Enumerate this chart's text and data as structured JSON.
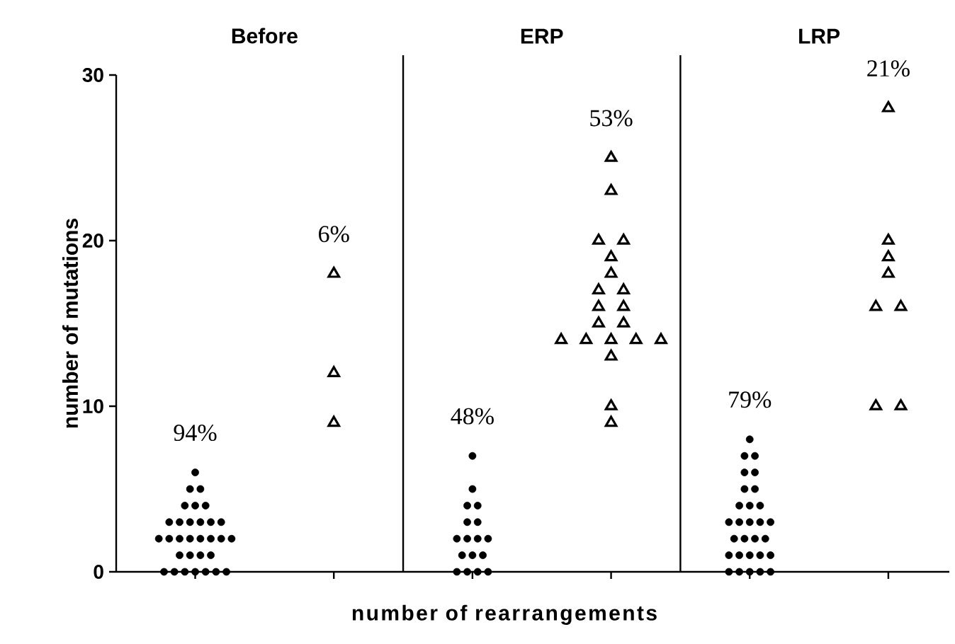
{
  "chart_data": {
    "type": "scatter",
    "ylabel": "number of mutations",
    "xlabel": "number of rearrangements",
    "categories": [
      null,
      null,
      null,
      null,
      null,
      null
    ],
    "ylim": [
      0,
      30
    ],
    "yticks": [
      0,
      10,
      20,
      30
    ],
    "tick_labels": "y",
    "annotations": [
      "Before",
      "ERP",
      "LRP",
      "94%",
      "6%",
      "48%",
      "53%",
      "79%",
      "21%"
    ],
    "series": [
      {
        "color": "#000000",
        "marker": "circle",
        "values": [
          6,
          null,
          7,
          null,
          8,
          null
        ]
      },
      {
        "color": "#000000",
        "marker": "circle",
        "values": [
          5,
          null,
          5,
          null,
          7,
          null
        ]
      },
      {
        "color": "#000000",
        "marker": "circle",
        "values": [
          5,
          null,
          4,
          null,
          7,
          null
        ]
      },
      {
        "color": "#000000",
        "marker": "circle",
        "values": [
          4,
          null,
          4,
          null,
          6,
          null
        ]
      },
      {
        "color": "#000000",
        "marker": "circle",
        "values": [
          4,
          null,
          3,
          null,
          6,
          null
        ]
      },
      {
        "color": "#000000",
        "marker": "circle",
        "values": [
          4,
          null,
          3,
          null,
          5,
          null
        ]
      },
      {
        "color": "#000000",
        "marker": "circle",
        "values": [
          3,
          null,
          2,
          null,
          5,
          null
        ]
      },
      {
        "color": "#000000",
        "marker": "circle",
        "values": [
          3,
          null,
          2,
          null,
          4,
          null
        ]
      },
      {
        "color": "#000000",
        "marker": "circle",
        "values": [
          3,
          null,
          2,
          null,
          4,
          null
        ]
      },
      {
        "color": "#000000",
        "marker": "circle",
        "values": [
          3,
          null,
          2,
          null,
          4,
          null
        ]
      },
      {
        "color": "#000000",
        "marker": "circle",
        "values": [
          3,
          null,
          1,
          null,
          3,
          null
        ]
      },
      {
        "color": "#000000",
        "marker": "circle",
        "values": [
          3,
          null,
          1,
          null,
          3,
          null
        ]
      },
      {
        "color": "#000000",
        "marker": "circle",
        "values": [
          2,
          null,
          1,
          null,
          3,
          null
        ]
      },
      {
        "color": "#000000",
        "marker": "circle",
        "values": [
          2,
          null,
          0,
          null,
          3,
          null
        ]
      },
      {
        "color": "#000000",
        "marker": "circle",
        "values": [
          2,
          null,
          0,
          null,
          3,
          null
        ]
      },
      {
        "color": "#000000",
        "marker": "circle",
        "values": [
          2,
          null,
          0,
          null,
          2,
          null
        ]
      },
      {
        "color": "#000000",
        "marker": "circle",
        "values": [
          2,
          null,
          0,
          null,
          2,
          null
        ]
      },
      {
        "color": "#000000",
        "marker": "circle",
        "values": [
          2,
          null,
          null,
          null,
          2,
          null
        ]
      },
      {
        "color": "#000000",
        "marker": "circle",
        "values": [
          2,
          null,
          null,
          null,
          2,
          null
        ]
      },
      {
        "color": "#000000",
        "marker": "circle",
        "values": [
          2,
          null,
          null,
          null,
          1,
          null
        ]
      },
      {
        "color": "#000000",
        "marker": "circle",
        "values": [
          1,
          null,
          null,
          null,
          1,
          null
        ]
      },
      {
        "color": "#000000",
        "marker": "circle",
        "values": [
          1,
          null,
          null,
          null,
          1,
          null
        ]
      },
      {
        "color": "#000000",
        "marker": "circle",
        "values": [
          1,
          null,
          null,
          null,
          1,
          null
        ]
      },
      {
        "color": "#000000",
        "marker": "circle",
        "values": [
          1,
          null,
          null,
          null,
          1,
          null
        ]
      },
      {
        "color": "#000000",
        "marker": "circle",
        "values": [
          0,
          null,
          null,
          null,
          0,
          null
        ]
      },
      {
        "color": "#000000",
        "marker": "circle",
        "values": [
          0,
          null,
          null,
          null,
          0,
          null
        ]
      },
      {
        "color": "#000000",
        "marker": "circle",
        "values": [
          0,
          null,
          null,
          null,
          0,
          null
        ]
      },
      {
        "color": "#000000",
        "marker": "circle",
        "values": [
          0,
          null,
          null,
          null,
          0,
          null
        ]
      },
      {
        "color": "#000000",
        "marker": "circle",
        "values": [
          0,
          null,
          null,
          null,
          0,
          null
        ]
      },
      {
        "color": "#000000",
        "marker": "circle",
        "values": [
          0,
          null,
          null,
          null,
          null,
          null
        ]
      },
      {
        "color": "#000000",
        "marker": "circle",
        "values": [
          0,
          null,
          null,
          null,
          null,
          null
        ]
      },
      {
        "color": "#000000",
        "marker": "triangle",
        "values": [
          null,
          18,
          null,
          25,
          null,
          28
        ]
      },
      {
        "color": "#000000",
        "marker": "triangle",
        "values": [
          null,
          12,
          null,
          23,
          null,
          20
        ]
      },
      {
        "color": "#000000",
        "marker": "triangle",
        "values": [
          null,
          9,
          null,
          20,
          null,
          19
        ]
      },
      {
        "color": "#000000",
        "marker": "triangle",
        "values": [
          null,
          null,
          null,
          20,
          null,
          18
        ]
      },
      {
        "color": "#000000",
        "marker": "triangle",
        "values": [
          null,
          null,
          null,
          19,
          null,
          16
        ]
      },
      {
        "color": "#000000",
        "marker": "triangle",
        "values": [
          null,
          null,
          null,
          18,
          null,
          16
        ]
      },
      {
        "color": "#000000",
        "marker": "triangle",
        "values": [
          null,
          null,
          null,
          17,
          null,
          10
        ]
      },
      {
        "color": "#000000",
        "marker": "triangle",
        "values": [
          null,
          null,
          null,
          17,
          null,
          10
        ]
      },
      {
        "color": "#000000",
        "marker": "triangle",
        "values": [
          null,
          null,
          null,
          16,
          null,
          null
        ]
      },
      {
        "color": "#000000",
        "marker": "triangle",
        "values": [
          null,
          null,
          null,
          16,
          null,
          null
        ]
      },
      {
        "color": "#000000",
        "marker": "triangle",
        "values": [
          null,
          null,
          null,
          15,
          null,
          null
        ]
      },
      {
        "color": "#000000",
        "marker": "triangle",
        "values": [
          null,
          null,
          null,
          15,
          null,
          null
        ]
      },
      {
        "color": "#000000",
        "marker": "triangle",
        "values": [
          null,
          null,
          null,
          14,
          null,
          null
        ]
      },
      {
        "color": "#000000",
        "marker": "triangle",
        "values": [
          null,
          null,
          null,
          14,
          null,
          null
        ]
      },
      {
        "color": "#000000",
        "marker": "triangle",
        "values": [
          null,
          null,
          null,
          14,
          null,
          null
        ]
      },
      {
        "color": "#000000",
        "marker": "triangle",
        "values": [
          null,
          null,
          null,
          14,
          null,
          null
        ]
      },
      {
        "color": "#000000",
        "marker": "triangle",
        "values": [
          null,
          null,
          null,
          14,
          null,
          null
        ]
      },
      {
        "color": "#000000",
        "marker": "triangle",
        "values": [
          null,
          null,
          null,
          13,
          null,
          null
        ]
      },
      {
        "color": "#000000",
        "marker": "triangle",
        "values": [
          null,
          null,
          null,
          10,
          null,
          null
        ]
      },
      {
        "color": "#000000",
        "marker": "triangle",
        "values": [
          null,
          null,
          null,
          9,
          null,
          null
        ]
      }
    ]
  }
}
